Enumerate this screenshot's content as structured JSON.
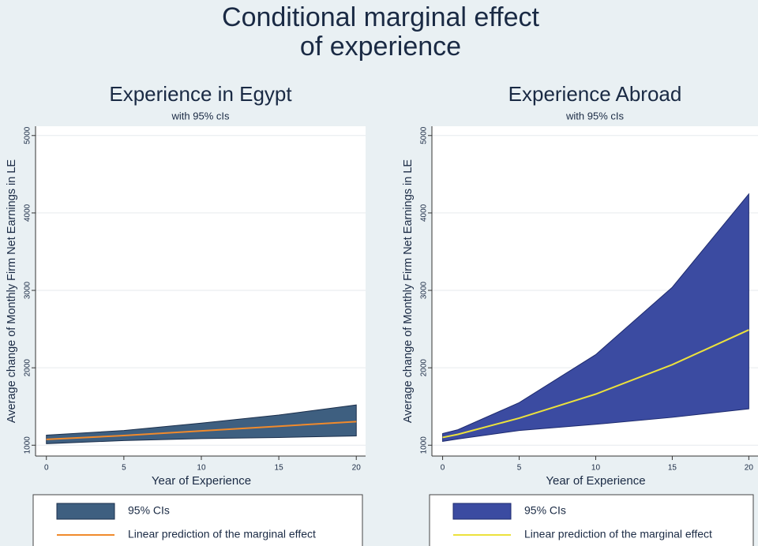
{
  "title": [
    "Conditional marginal effect",
    "of experience"
  ],
  "chart_data": [
    {
      "type": "band-line",
      "title": "Experience in Egypt",
      "subtitle": "with 95% cIs",
      "xlabel": "Year of Experience",
      "ylabel": "Average change of Monthly Firm Net Earnings in LE",
      "x": [
        0,
        5,
        10,
        15,
        20
      ],
      "series": [
        {
          "name": "95% CIs",
          "color": "#3e5f80",
          "edge": "#1b2f4c",
          "lower": [
            1020,
            1060,
            1085,
            1100,
            1120
          ],
          "upper": [
            1130,
            1190,
            1285,
            1390,
            1520
          ]
        },
        {
          "name": "Linear prediction of the marginal effect",
          "color": "#f08a2c",
          "values": [
            1075,
            1125,
            1185,
            1245,
            1305
          ]
        }
      ],
      "xlim": [
        -0.7,
        20.6
      ],
      "ylim": [
        860,
        5120
      ],
      "xticks": [
        0,
        5,
        10,
        15,
        20
      ],
      "yticks": [
        1000,
        2000,
        3000,
        4000,
        5000
      ],
      "grid": true
    },
    {
      "type": "band-line",
      "title": "Experience Abroad",
      "subtitle": "with 95% cIs",
      "xlabel": "Year of Experience",
      "ylabel": "Average change of Monthly Firm Net Earnings in LE",
      "x": [
        0,
        1,
        5,
        10,
        15,
        20
      ],
      "series": [
        {
          "name": "95% CIs",
          "color": "#3b4ba1",
          "edge": "#1e2b6e",
          "lower": [
            1050,
            1080,
            1190,
            1270,
            1360,
            1470
          ],
          "upper": [
            1150,
            1200,
            1550,
            2170,
            3040,
            4245
          ]
        },
        {
          "name": "Linear prediction of the marginal effect",
          "color": "#ece23c",
          "values": [
            1100,
            1140,
            1350,
            1660,
            2040,
            2490
          ]
        }
      ],
      "xlim": [
        -0.7,
        20.6
      ],
      "ylim": [
        860,
        5120
      ],
      "xticks": [
        0,
        5,
        10,
        15,
        20
      ],
      "yticks": [
        1000,
        2000,
        3000,
        4000,
        5000
      ],
      "grid": true
    }
  ]
}
